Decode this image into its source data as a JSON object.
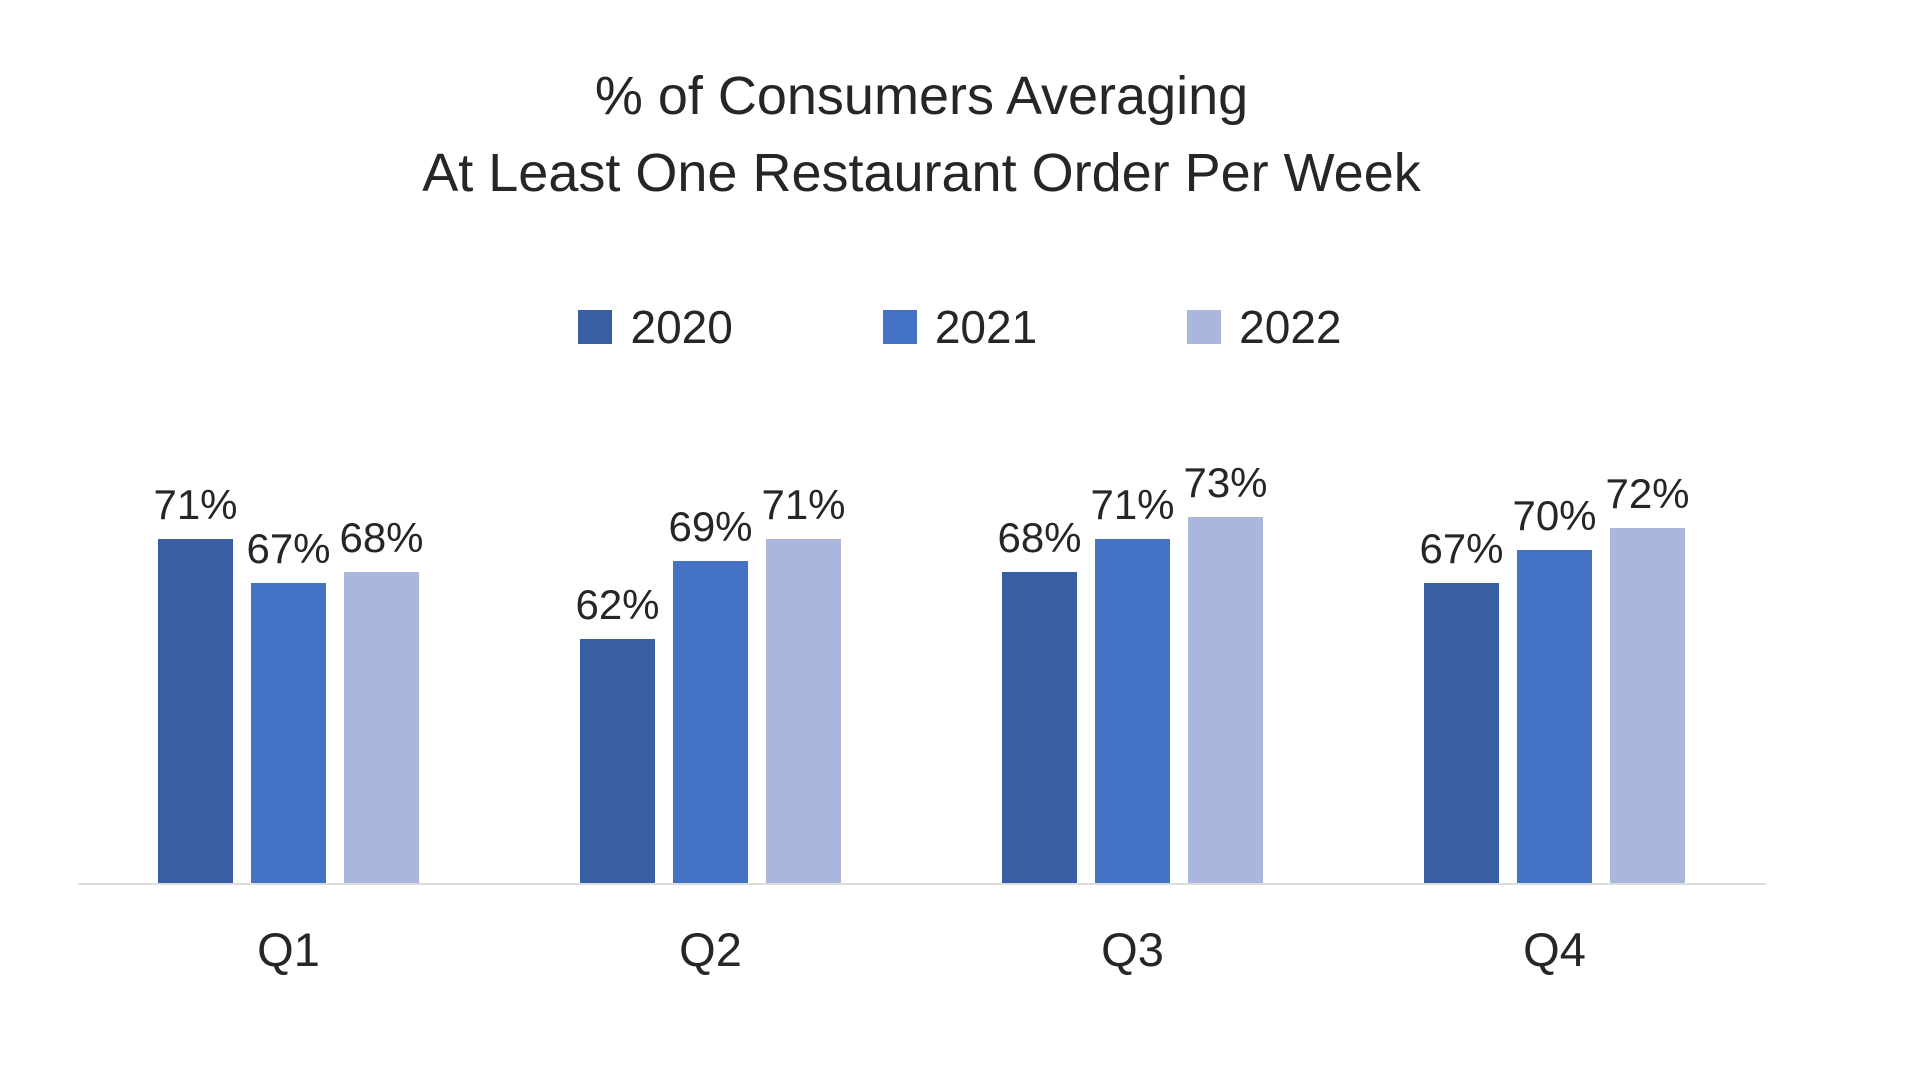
{
  "titles": {
    "line1": "% of Consumers Averaging",
    "line2": "At Least One Restaurant Order Per Week"
  },
  "chart_data": {
    "type": "bar",
    "title": "% of Consumers Averaging At Least One Restaurant Order Per Week",
    "categories": [
      "Q1",
      "Q2",
      "Q3",
      "Q4"
    ],
    "series": [
      {
        "name": "2020",
        "color": "#3A5EA4",
        "values": [
          71,
          62,
          68,
          67
        ]
      },
      {
        "name": "2021",
        "color": "#4472C4",
        "values": [
          67,
          69,
          71,
          70
        ]
      },
      {
        "name": "2022",
        "color": "#AAB6DC",
        "values": [
          68,
          71,
          73,
          72
        ]
      }
    ],
    "data_labels": [
      "71%",
      "67%",
      "68%",
      "62%",
      "69%",
      "71%",
      "68%",
      "71%",
      "73%",
      "67%",
      "70%",
      "72%"
    ],
    "value_suffix": "%",
    "xlabel": "",
    "ylabel": "",
    "ylim": [
      40,
      80
    ],
    "axis_visible": false,
    "grid": false,
    "legend_position": "top-center"
  },
  "colors": {
    "background": "#FFFFFF",
    "text": "#262626",
    "axis_line": "#DCDCDC"
  }
}
